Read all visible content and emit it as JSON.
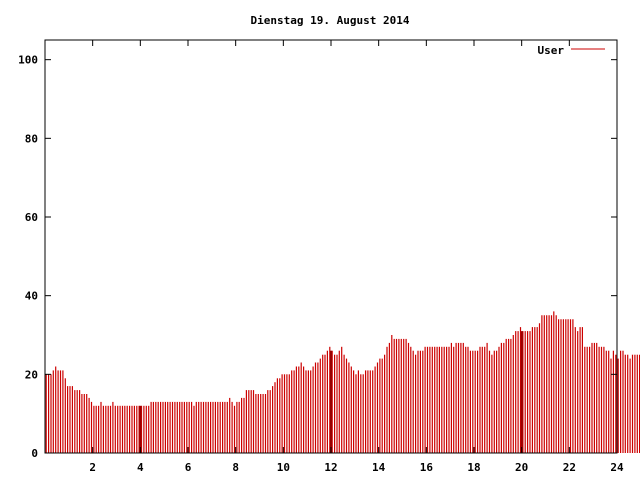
{
  "chart_data": {
    "type": "bar",
    "title": "Dienstag 19. August 2014",
    "xlabel": "",
    "ylabel": "",
    "xlim": [
      0,
      24
    ],
    "ylim": [
      0,
      105
    ],
    "x_ticks": [
      2,
      4,
      6,
      8,
      10,
      12,
      14,
      16,
      18,
      20,
      22,
      24
    ],
    "x_tick_labels": [
      "2",
      "4",
      "6",
      "8",
      "10",
      "12",
      "14",
      "16",
      "18",
      "20",
      "22",
      "24"
    ],
    "y_ticks": [
      0,
      20,
      40,
      60,
      80,
      100
    ],
    "y_tick_labels": [
      "0",
      "20",
      "40",
      "60",
      "80",
      "100"
    ],
    "grid": false,
    "legend": {
      "position": "top-right",
      "entries": [
        "User"
      ]
    },
    "series": [
      {
        "name": "User",
        "color": "#cc0000",
        "step_hours": 0.1,
        "values": [
          20,
          20,
          20,
          21,
          22,
          21,
          21,
          21,
          19,
          17,
          17,
          17,
          16,
          16,
          16,
          15,
          15,
          15,
          14,
          13,
          12,
          12,
          12,
          13,
          12,
          12,
          12,
          12,
          13,
          12,
          12,
          12,
          12,
          12,
          12,
          12,
          12,
          12,
          12,
          12,
          12,
          12,
          12,
          12,
          13,
          13,
          13,
          13,
          13,
          13,
          13,
          13,
          13,
          13,
          13,
          13,
          13,
          13,
          13,
          13,
          13,
          13,
          12,
          13,
          13,
          13,
          13,
          13,
          13,
          13,
          13,
          13,
          13,
          13,
          13,
          13,
          13,
          14,
          13,
          12,
          13,
          13,
          14,
          14,
          16,
          16,
          16,
          16,
          15,
          15,
          15,
          15,
          15,
          16,
          16,
          17,
          18,
          19,
          19,
          20,
          20,
          20,
          20,
          21,
          21,
          22,
          22,
          23,
          22,
          21,
          21,
          21,
          22,
          23,
          23,
          24,
          25,
          25,
          26,
          27,
          26,
          25,
          25,
          26,
          27,
          25,
          24,
          23,
          22,
          21,
          20,
          21,
          20,
          20,
          21,
          21,
          21,
          21,
          22,
          23,
          24,
          24,
          25,
          27,
          28,
          30,
          29,
          29,
          29,
          29,
          29,
          29,
          28,
          27,
          26,
          25,
          26,
          26,
          26,
          27,
          27,
          27,
          27,
          27,
          27,
          27,
          27,
          27,
          27,
          27,
          28,
          27,
          28,
          28,
          28,
          28,
          27,
          27,
          26,
          26,
          26,
          26,
          27,
          27,
          27,
          28,
          26,
          25,
          26,
          26,
          27,
          28,
          28,
          29,
          29,
          29,
          30,
          31,
          31,
          32,
          31,
          31,
          31,
          31,
          32,
          32,
          32,
          33,
          35,
          35,
          35,
          35,
          35,
          36,
          35,
          34,
          34,
          34,
          34,
          34,
          34,
          34,
          32,
          31,
          32,
          32,
          27,
          27,
          27,
          28,
          28,
          28,
          27,
          27,
          27,
          26,
          26,
          24,
          26,
          25,
          24,
          26,
          26,
          25,
          25,
          24,
          25,
          25,
          25,
          25
        ]
      }
    ],
    "emphasized_x": [
      4,
      12,
      20
    ]
  }
}
